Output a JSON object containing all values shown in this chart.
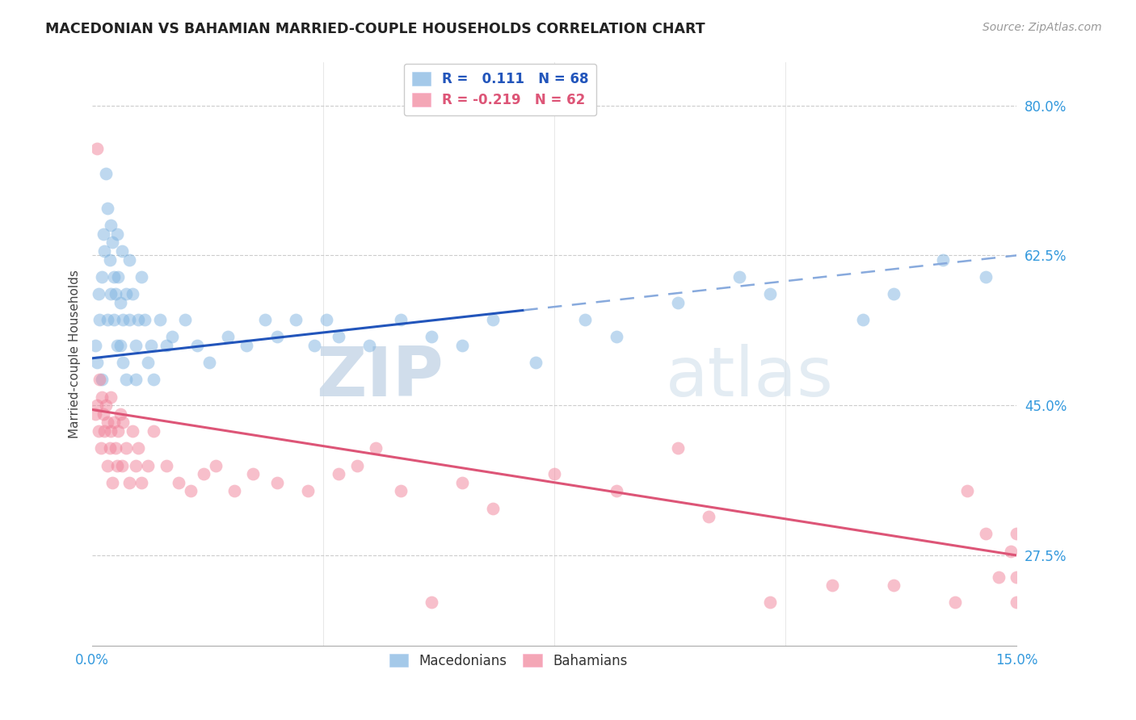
{
  "title": "MACEDONIAN VS BAHAMIAN MARRIED-COUPLE HOUSEHOLDS CORRELATION CHART",
  "source": "Source: ZipAtlas.com",
  "ylabel": "Married-couple Households",
  "xlim": [
    0.0,
    15.0
  ],
  "ylim": [
    17.0,
    85.0
  ],
  "yticks": [
    27.5,
    45.0,
    62.5,
    80.0
  ],
  "xticks": [
    0.0,
    15.0
  ],
  "macedonian_color": "#7EB3E0",
  "bahamian_color": "#F08098",
  "macedonian_R": "0.111",
  "macedonian_N": 68,
  "bahamian_R": "-0.219",
  "bahamian_N": 62,
  "macedonian_x": [
    0.05,
    0.08,
    0.1,
    0.12,
    0.15,
    0.15,
    0.18,
    0.2,
    0.22,
    0.25,
    0.25,
    0.28,
    0.3,
    0.3,
    0.32,
    0.35,
    0.35,
    0.38,
    0.4,
    0.4,
    0.42,
    0.45,
    0.45,
    0.48,
    0.5,
    0.5,
    0.55,
    0.55,
    0.6,
    0.6,
    0.65,
    0.7,
    0.7,
    0.75,
    0.8,
    0.85,
    0.9,
    0.95,
    1.0,
    1.1,
    1.2,
    1.3,
    1.5,
    1.7,
    1.9,
    2.2,
    2.5,
    2.8,
    3.0,
    3.3,
    3.6,
    3.8,
    4.0,
    4.5,
    5.0,
    5.5,
    6.0,
    6.5,
    7.2,
    8.0,
    8.5,
    9.5,
    10.5,
    11.0,
    12.5,
    13.0,
    13.8,
    14.5
  ],
  "macedonian_y": [
    52.0,
    50.0,
    58.0,
    55.0,
    60.0,
    48.0,
    65.0,
    63.0,
    72.0,
    68.0,
    55.0,
    62.0,
    66.0,
    58.0,
    64.0,
    60.0,
    55.0,
    58.0,
    65.0,
    52.0,
    60.0,
    57.0,
    52.0,
    63.0,
    55.0,
    50.0,
    58.0,
    48.0,
    62.0,
    55.0,
    58.0,
    52.0,
    48.0,
    55.0,
    60.0,
    55.0,
    50.0,
    52.0,
    48.0,
    55.0,
    52.0,
    53.0,
    55.0,
    52.0,
    50.0,
    53.0,
    52.0,
    55.0,
    53.0,
    55.0,
    52.0,
    55.0,
    53.0,
    52.0,
    55.0,
    53.0,
    52.0,
    55.0,
    50.0,
    55.0,
    53.0,
    57.0,
    60.0,
    58.0,
    55.0,
    58.0,
    62.0,
    60.0
  ],
  "bahamian_x": [
    0.05,
    0.07,
    0.08,
    0.1,
    0.12,
    0.14,
    0.15,
    0.18,
    0.2,
    0.22,
    0.25,
    0.25,
    0.28,
    0.3,
    0.3,
    0.32,
    0.35,
    0.38,
    0.4,
    0.42,
    0.45,
    0.48,
    0.5,
    0.55,
    0.6,
    0.65,
    0.7,
    0.75,
    0.8,
    0.9,
    1.0,
    1.2,
    1.4,
    1.6,
    1.8,
    2.0,
    2.3,
    2.6,
    3.0,
    3.5,
    4.0,
    4.3,
    4.6,
    5.0,
    5.5,
    6.0,
    6.5,
    7.5,
    8.5,
    9.5,
    10.0,
    11.0,
    12.0,
    13.0,
    14.0,
    14.2,
    14.5,
    14.7,
    14.9,
    15.0,
    15.0,
    15.0
  ],
  "bahamian_y": [
    44.0,
    45.0,
    75.0,
    42.0,
    48.0,
    40.0,
    46.0,
    44.0,
    42.0,
    45.0,
    38.0,
    43.0,
    40.0,
    42.0,
    46.0,
    36.0,
    43.0,
    40.0,
    38.0,
    42.0,
    44.0,
    38.0,
    43.0,
    40.0,
    36.0,
    42.0,
    38.0,
    40.0,
    36.0,
    38.0,
    42.0,
    38.0,
    36.0,
    35.0,
    37.0,
    38.0,
    35.0,
    37.0,
    36.0,
    35.0,
    37.0,
    38.0,
    40.0,
    35.0,
    22.0,
    36.0,
    33.0,
    37.0,
    35.0,
    40.0,
    32.0,
    22.0,
    24.0,
    24.0,
    22.0,
    35.0,
    30.0,
    25.0,
    28.0,
    30.0,
    25.0,
    22.0
  ],
  "blue_line_solid_end": 7.0,
  "mac_trend_x0": 0.0,
  "mac_trend_x1": 15.0,
  "mac_trend_y0": 50.5,
  "mac_trend_y1": 62.5,
  "bah_trend_x0": 0.0,
  "bah_trend_x1": 15.0,
  "bah_trend_y0": 44.5,
  "bah_trend_y1": 27.5,
  "watermark_zip": "ZIP",
  "watermark_atlas": "atlas",
  "background_color": "#ffffff",
  "grid_color": "#CCCCCC",
  "grid_style": "--"
}
